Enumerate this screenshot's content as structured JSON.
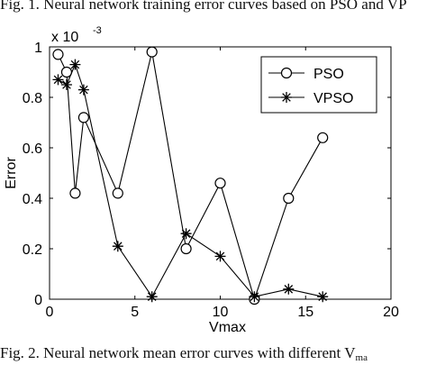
{
  "captions": {
    "top": "Fig. 1.   Neural network training error curves based on PSO and VP",
    "bottom_main": "Fig. 2.   Neural network mean error curves with different V",
    "bottom_sub": "ma"
  },
  "chart_data": {
    "type": "line",
    "title": "",
    "xlabel": "Vmax",
    "ylabel": "Error",
    "y_exponent_label": "x 10",
    "y_exponent_power": "-3",
    "xlim": [
      0,
      20
    ],
    "ylim": [
      0,
      1
    ],
    "xticks": [
      0,
      5,
      10,
      15,
      20
    ],
    "yticks": [
      0,
      0.2,
      0.4,
      0.6,
      0.8,
      1
    ],
    "grid": false,
    "legend_position": "top-right",
    "series": [
      {
        "name": "PSO",
        "marker": "circle",
        "x": [
          0.5,
          1,
          1.5,
          2,
          4,
          6,
          8,
          10,
          12,
          14,
          16
        ],
        "y": [
          0.97,
          0.9,
          0.42,
          0.72,
          0.42,
          0.98,
          0.2,
          0.46,
          0.0,
          0.4,
          0.64
        ]
      },
      {
        "name": "VPSO",
        "marker": "star",
        "x": [
          0.5,
          1,
          1.5,
          2,
          4,
          6,
          8,
          10,
          12,
          14,
          16
        ],
        "y": [
          0.87,
          0.85,
          0.93,
          0.83,
          0.21,
          0.01,
          0.26,
          0.17,
          0.01,
          0.04,
          0.01
        ]
      }
    ]
  }
}
